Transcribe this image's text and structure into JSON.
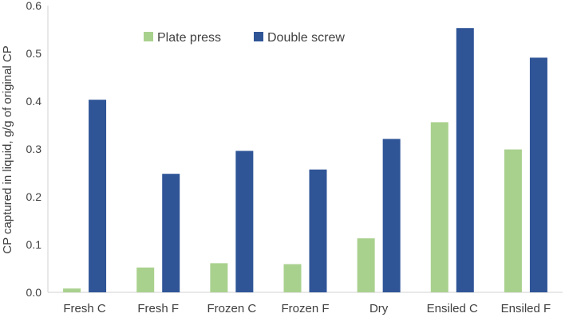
{
  "chart_data": {
    "type": "bar",
    "title": "",
    "xlabel": "",
    "ylabel": "CP captured in liquid, g/g of original CP",
    "categories": [
      "Fresh C",
      "Fresh F",
      "Frozen C",
      "Frozen F",
      "Dry",
      "Ensiled C",
      "Ensiled F"
    ],
    "series": [
      {
        "name": "Plate press",
        "color": "#a9d18e",
        "values": [
          0.008,
          0.052,
          0.061,
          0.059,
          0.113,
          0.356,
          0.299
        ]
      },
      {
        "name": "Double screw",
        "color": "#2f5597",
        "values": [
          0.403,
          0.248,
          0.296,
          0.257,
          0.321,
          0.553,
          0.491
        ]
      }
    ],
    "ylim": [
      0,
      0.6
    ],
    "yticks": [
      "0.0",
      "0.1",
      "0.2",
      "0.3",
      "0.4",
      "0.5",
      "0.6"
    ],
    "grid": false,
    "legend_position": "top"
  }
}
